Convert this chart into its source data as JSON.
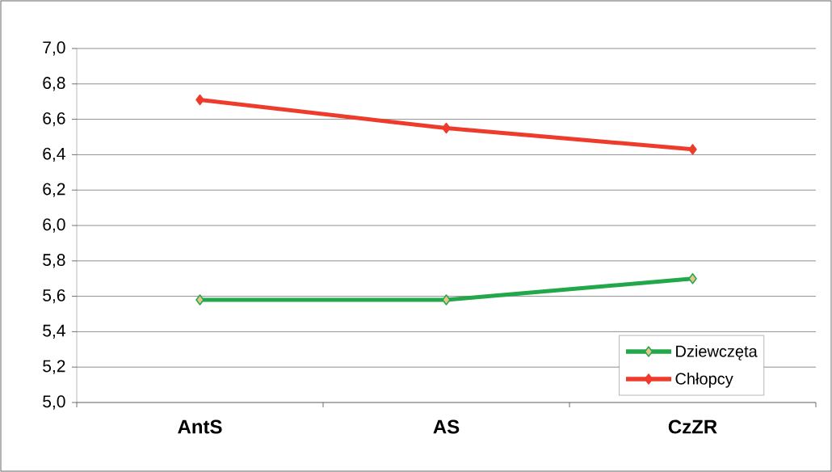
{
  "chart_data": {
    "type": "line",
    "categories": [
      "AntS",
      "AS",
      "CzZR"
    ],
    "series": [
      {
        "name": "Dziewczęta",
        "color": "#22a84a",
        "values": [
          5.58,
          5.58,
          5.7
        ]
      },
      {
        "name": "Chłopcy",
        "color": "#ee3b2b",
        "values": [
          6.71,
          6.55,
          6.43
        ]
      }
    ],
    "ylim": [
      5.0,
      7.0
    ],
    "yticks": [
      {
        "value": 5.0,
        "label": "5,0"
      },
      {
        "value": 5.2,
        "label": "5,2"
      },
      {
        "value": 5.4,
        "label": "5,4"
      },
      {
        "value": 5.6,
        "label": "5,6"
      },
      {
        "value": 5.8,
        "label": "5,8"
      },
      {
        "value": 6.0,
        "label": "6,0"
      },
      {
        "value": 6.2,
        "label": "6,2"
      },
      {
        "value": 6.4,
        "label": "6,4"
      },
      {
        "value": 6.6,
        "label": "6,6"
      },
      {
        "value": 6.8,
        "label": "6,8"
      },
      {
        "value": 7.0,
        "label": "7,0"
      }
    ],
    "grid": "y",
    "legend": "bottom right",
    "marker": "diamond",
    "line_style": "solid"
  }
}
